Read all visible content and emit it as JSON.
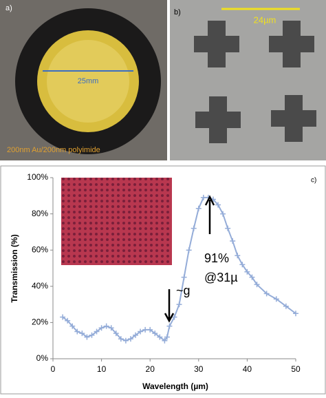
{
  "panel_a": {
    "label": "a)",
    "dimension": "25mm",
    "caption": "200nm Au/200nm polyimide"
  },
  "panel_b": {
    "label": "b)",
    "dimension": "24µm"
  },
  "chart_data": {
    "type": "line",
    "panel_label": "c)",
    "x_label": "Wavelength (µm)",
    "y_label": "Transmission (%)",
    "x": [
      2,
      3,
      4,
      5,
      6,
      7,
      8,
      9,
      10,
      11,
      12,
      13,
      14,
      15,
      16,
      17,
      18,
      19,
      20,
      21,
      22,
      23,
      23.5,
      24,
      25,
      26,
      27,
      28,
      29,
      30,
      31,
      32,
      33,
      34,
      35,
      36,
      37,
      38,
      39,
      40,
      41,
      42,
      44,
      46,
      48,
      50
    ],
    "series": [
      {
        "color": "#94acd8",
        "values": [
          23,
          21,
          18,
          15,
          14,
          12,
          13,
          15,
          17,
          18,
          17,
          14,
          11,
          10,
          11,
          13,
          15,
          16,
          16,
          14,
          12,
          10,
          12,
          18,
          23,
          30,
          45,
          60,
          72,
          83,
          89,
          89,
          88,
          85,
          80,
          72,
          65,
          57,
          52,
          48,
          45,
          41,
          36,
          33,
          29,
          25
        ]
      }
    ],
    "xlim": [
      0,
      50
    ],
    "xticks": [
      0,
      10,
      20,
      30,
      40,
      50
    ],
    "ylim": [
      0,
      100
    ],
    "yticks": [
      {
        "value": 0,
        "label": "0%"
      },
      {
        "value": 20,
        "label": "20%"
      },
      {
        "value": 40,
        "label": "40%"
      },
      {
        "value": 60,
        "label": "60%"
      },
      {
        "value": 80,
        "label": "80%"
      },
      {
        "value": 100,
        "label": "100%"
      }
    ],
    "annotations": [
      "~g",
      "91%",
      "@31µ"
    ]
  }
}
